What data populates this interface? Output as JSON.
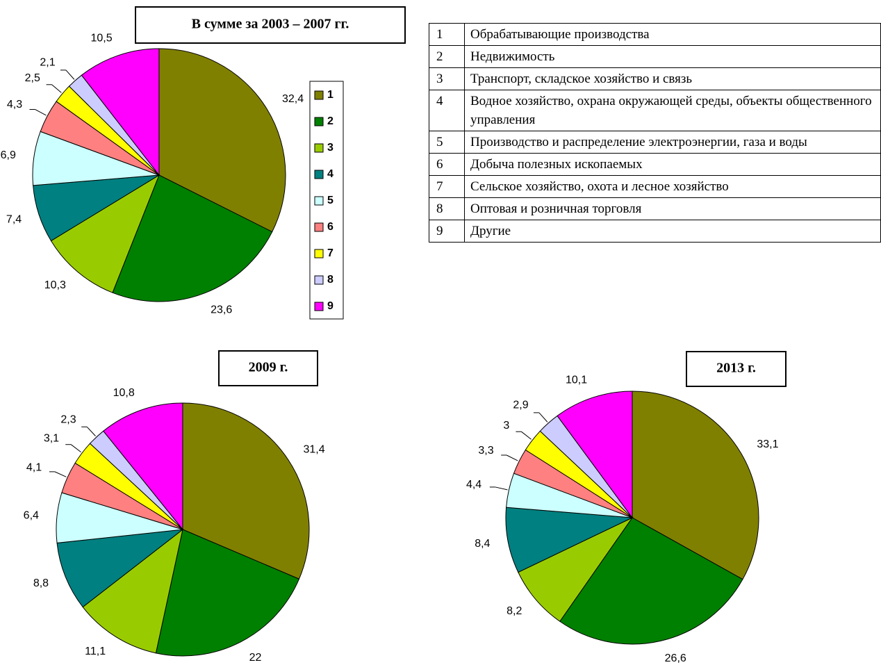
{
  "chart_data": [
    {
      "type": "pie",
      "title": "В сумме за 2003 – 2007 гг.",
      "categories": [
        "1",
        "2",
        "3",
        "4",
        "5",
        "6",
        "7",
        "8",
        "9"
      ],
      "values": [
        32.4,
        23.6,
        10.3,
        7.4,
        6.9,
        4.3,
        2.5,
        2.1,
        10.5
      ],
      "value_labels": [
        "32,4",
        "23,6",
        "10,3",
        "7,4",
        "6,9",
        "4,3",
        "2,5",
        "2,1",
        "10,5"
      ],
      "colors": [
        "#808000",
        "#008000",
        "#99cc00",
        "#008080",
        "#ccffff",
        "#ff8080",
        "#ffff00",
        "#ccccff",
        "#ff00ff"
      ],
      "legend": true
    },
    {
      "type": "pie",
      "title": "2009 г.",
      "categories": [
        "1",
        "2",
        "3",
        "4",
        "5",
        "6",
        "7",
        "8",
        "9"
      ],
      "values": [
        31.4,
        22,
        11.1,
        8.8,
        6.4,
        4.1,
        3.1,
        2.3,
        10.8
      ],
      "value_labels": [
        "31,4",
        "22",
        "11,1",
        "8,8",
        "6,4",
        "4,1",
        "3,1",
        "2,3",
        "10,8"
      ],
      "colors": [
        "#808000",
        "#008000",
        "#99cc00",
        "#008080",
        "#ccffff",
        "#ff8080",
        "#ffff00",
        "#ccccff",
        "#ff00ff"
      ],
      "legend": false
    },
    {
      "type": "pie",
      "title": "2013 г.",
      "categories": [
        "1",
        "2",
        "3",
        "4",
        "5",
        "6",
        "7",
        "8",
        "9"
      ],
      "values": [
        33.1,
        26.6,
        8.2,
        8.4,
        4.4,
        3.3,
        3,
        2.9,
        10.1
      ],
      "value_labels": [
        "33,1",
        "26,6",
        "8,2",
        "8,4",
        "4,4",
        "3,3",
        "3",
        "2,9",
        "10,1"
      ],
      "colors": [
        "#808000",
        "#008000",
        "#99cc00",
        "#008080",
        "#ccffff",
        "#ff8080",
        "#ffff00",
        "#ccccff",
        "#ff00ff"
      ],
      "legend": false
    }
  ],
  "table": {
    "rows": [
      [
        "1",
        "Обрабатывающие производства"
      ],
      [
        "2",
        "Недвижимость"
      ],
      [
        "3",
        "Транспорт, складское хозяйство и связь"
      ],
      [
        "4",
        "Водное хозяйство, охрана окружающей среды, объекты общественного управления"
      ],
      [
        "5",
        "Производство и распределение электроэнергии, газа и воды"
      ],
      [
        "6",
        "Добыча полезных ископаемых"
      ],
      [
        "7",
        "Сельское хозяйство, охота и лесное хозяйство"
      ],
      [
        "8",
        "Оптовая и розничная торговля"
      ],
      [
        "9",
        "Другие"
      ]
    ]
  }
}
